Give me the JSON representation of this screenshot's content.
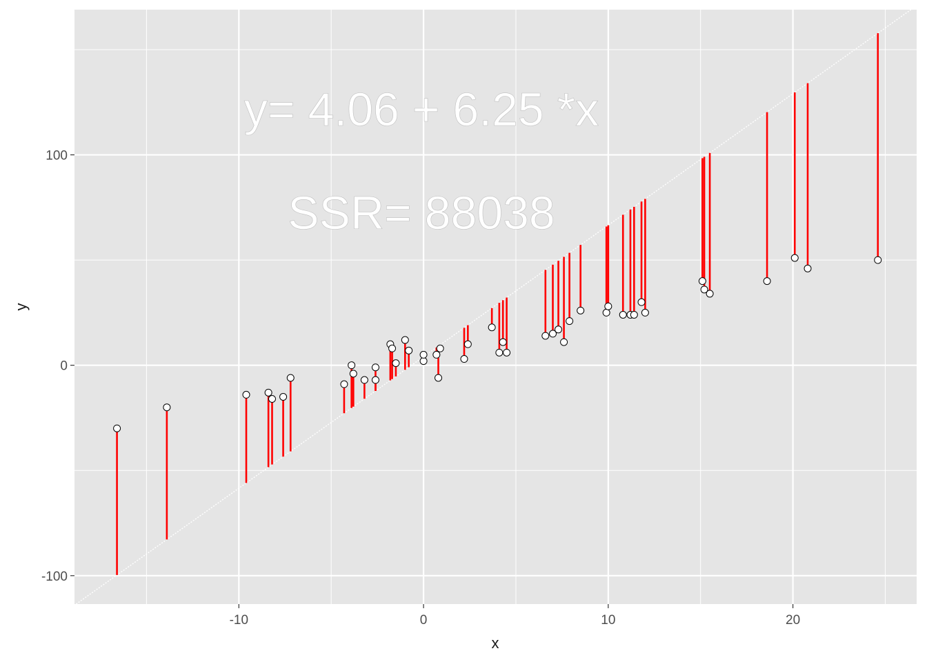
{
  "chart_data": {
    "type": "scatter",
    "title": "",
    "xlabel": "x",
    "ylabel": "y",
    "xlim": [
      -18.9,
      26.7
    ],
    "ylim": [
      -113.5,
      169
    ],
    "x_ticks": [
      -10,
      0,
      10,
      20
    ],
    "y_ticks": [
      -100,
      0,
      100
    ],
    "grid": true,
    "fit_line": {
      "intercept": 4.06,
      "slope": 6.25
    },
    "annotations": [
      "y= 4.06 + 6.25 *x",
      "SSR= 88038"
    ],
    "colors": {
      "panel": "#e5e5e5",
      "grid": "#ffffff",
      "residual": "#ff0000",
      "point_fill": "#ffffff",
      "point_stroke": "#000000",
      "fit_line": "#ffffff",
      "annotation": "#ffffff"
    },
    "series": [
      {
        "points": [
          {
            "x": -16.6,
            "y": -30
          },
          {
            "x": -13.9,
            "y": -20
          },
          {
            "x": -9.6,
            "y": -14
          },
          {
            "x": -8.4,
            "y": -13
          },
          {
            "x": -8.2,
            "y": -16
          },
          {
            "x": -7.6,
            "y": -15
          },
          {
            "x": -7.2,
            "y": -6
          },
          {
            "x": -4.3,
            "y": -9
          },
          {
            "x": -3.9,
            "y": 0
          },
          {
            "x": -3.8,
            "y": -4
          },
          {
            "x": -3.2,
            "y": -7
          },
          {
            "x": -2.6,
            "y": -1
          },
          {
            "x": -2.6,
            "y": -7
          },
          {
            "x": -1.8,
            "y": 10
          },
          {
            "x": -1.7,
            "y": 8
          },
          {
            "x": -1.5,
            "y": 1
          },
          {
            "x": -1.0,
            "y": 12
          },
          {
            "x": -0.8,
            "y": 7
          },
          {
            "x": 0.0,
            "y": 2
          },
          {
            "x": 0.0,
            "y": 5
          },
          {
            "x": 0.7,
            "y": 5
          },
          {
            "x": 0.8,
            "y": -6
          },
          {
            "x": 0.9,
            "y": 8
          },
          {
            "x": 2.2,
            "y": 3
          },
          {
            "x": 2.4,
            "y": 10
          },
          {
            "x": 3.7,
            "y": 18
          },
          {
            "x": 4.1,
            "y": 6
          },
          {
            "x": 4.3,
            "y": 11
          },
          {
            "x": 4.5,
            "y": 6
          },
          {
            "x": 6.6,
            "y": 14
          },
          {
            "x": 7.0,
            "y": 15
          },
          {
            "x": 7.3,
            "y": 17
          },
          {
            "x": 7.6,
            "y": 11
          },
          {
            "x": 7.9,
            "y": 21
          },
          {
            "x": 8.5,
            "y": 26
          },
          {
            "x": 9.9,
            "y": 25
          },
          {
            "x": 10.0,
            "y": 28
          },
          {
            "x": 10.8,
            "y": 24
          },
          {
            "x": 11.2,
            "y": 24
          },
          {
            "x": 11.4,
            "y": 24
          },
          {
            "x": 11.8,
            "y": 30
          },
          {
            "x": 12.0,
            "y": 25
          },
          {
            "x": 15.1,
            "y": 40
          },
          {
            "x": 15.2,
            "y": 36
          },
          {
            "x": 15.5,
            "y": 34
          },
          {
            "x": 18.6,
            "y": 40
          },
          {
            "x": 20.1,
            "y": 51
          },
          {
            "x": 20.8,
            "y": 46
          },
          {
            "x": 24.6,
            "y": 50
          }
        ]
      }
    ]
  }
}
